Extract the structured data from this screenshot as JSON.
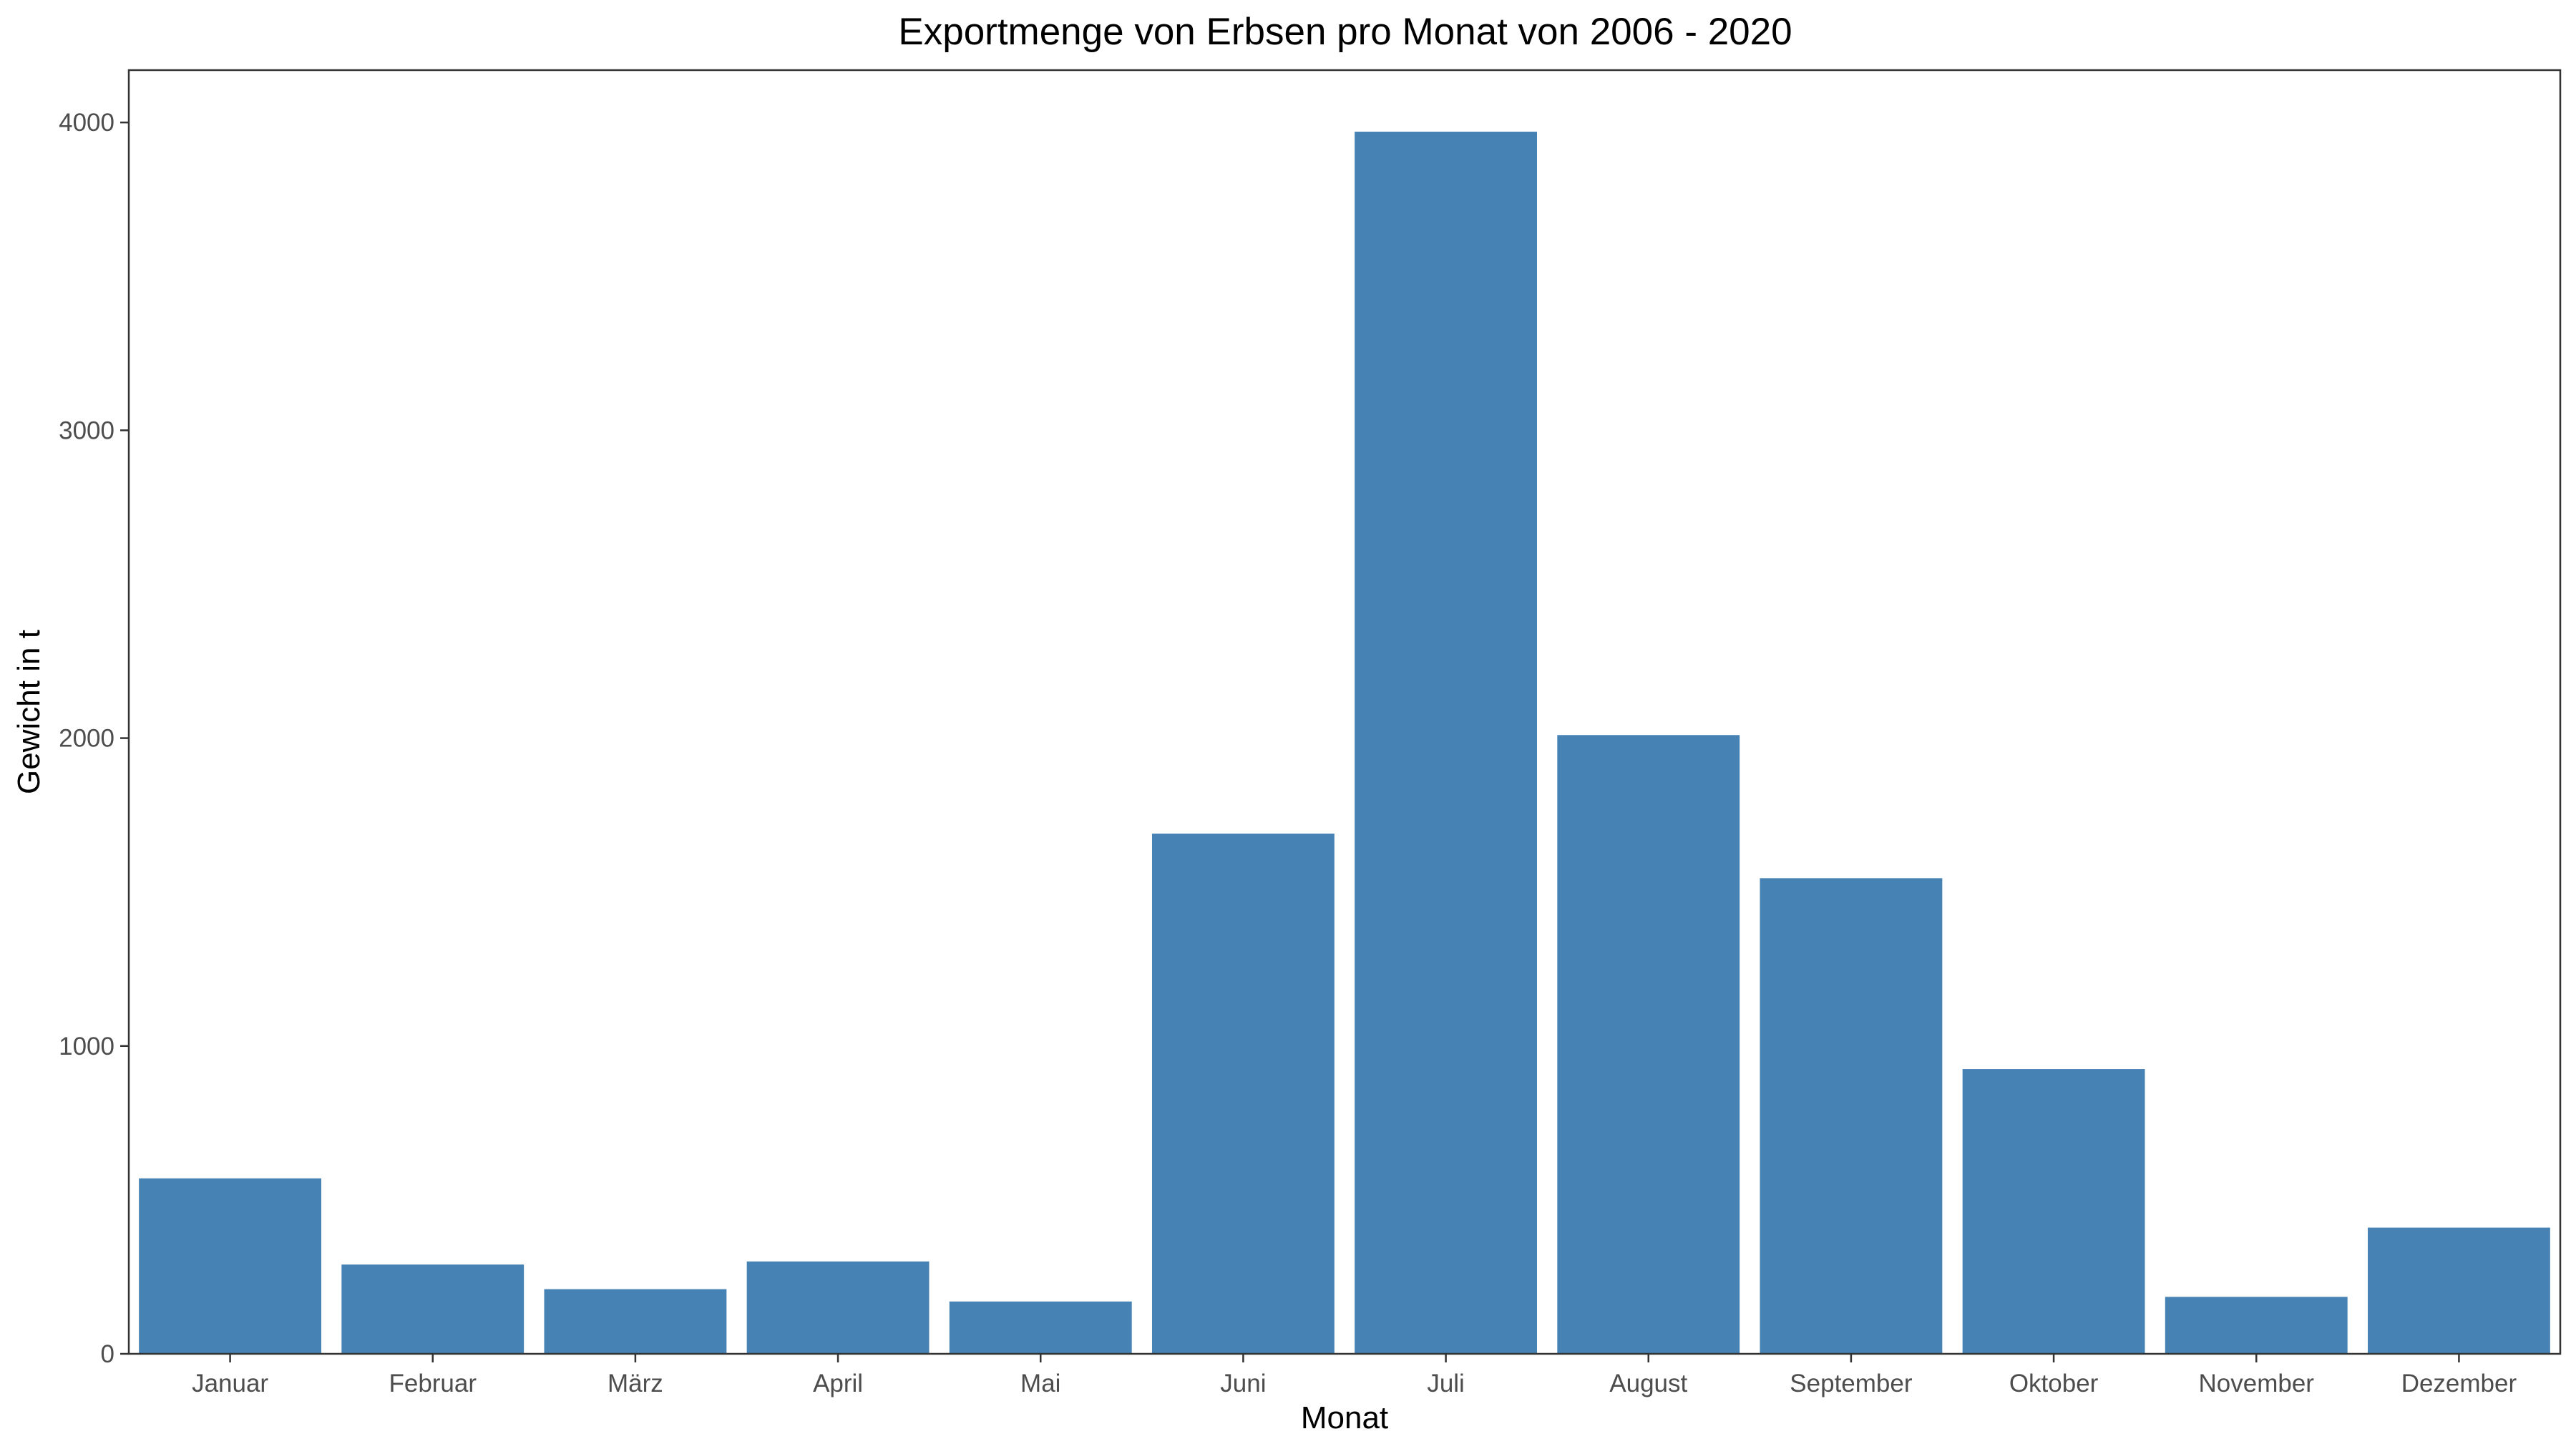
{
  "chart_data": {
    "type": "bar",
    "title": "Exportmenge von Erbsen pro Monat von 2006 - 2020",
    "xlabel": "Monat",
    "ylabel": "Gewicht in t",
    "categories": [
      "Januar",
      "Februar",
      "März",
      "April",
      "Mai",
      "Juni",
      "Juli",
      "August",
      "September",
      "Oktober",
      "November",
      "Dezember"
    ],
    "values": [
      570,
      290,
      210,
      300,
      170,
      1690,
      3970,
      2010,
      1545,
      925,
      185,
      410
    ],
    "ylim": [
      0,
      4170
    ],
    "yticks": [
      0,
      1000,
      2000,
      3000,
      4000
    ],
    "bar_color": "#4682b4",
    "grid": false,
    "legend": "none"
  }
}
